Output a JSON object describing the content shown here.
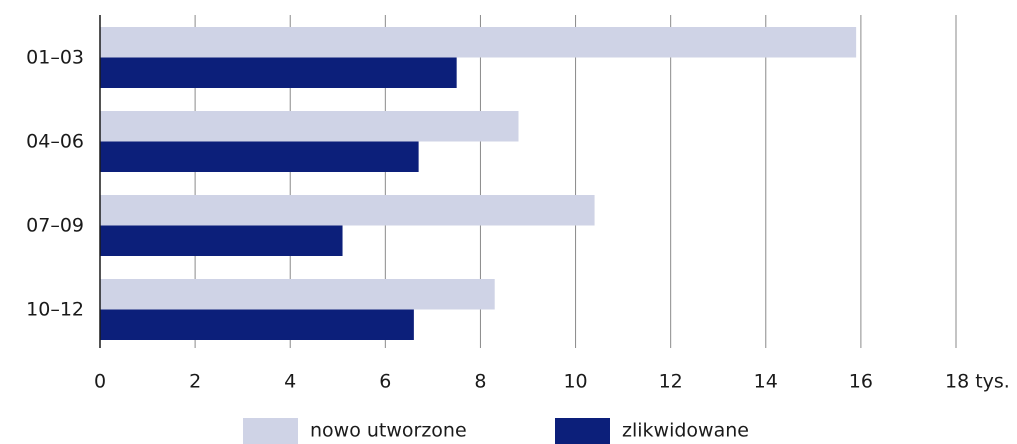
{
  "chart_data": {
    "type": "hbar",
    "categories": [
      "01–03",
      "04–06",
      "07–09",
      "10–12"
    ],
    "series": [
      {
        "name": "nowo utworzone",
        "color": "#cfd3e6",
        "values": [
          15.9,
          8.8,
          10.4,
          8.3
        ]
      },
      {
        "name": "zlikwidowane",
        "color": "#0c1f7a",
        "values": [
          7.5,
          6.7,
          5.1,
          6.6
        ]
      }
    ],
    "xlim": [
      0,
      18
    ],
    "xticks": [
      0,
      2,
      4,
      6,
      8,
      10,
      12,
      14,
      16,
      {
        "value": 18,
        "label": "18 tys."
      }
    ],
    "grid": true,
    "legend": "bottom"
  }
}
